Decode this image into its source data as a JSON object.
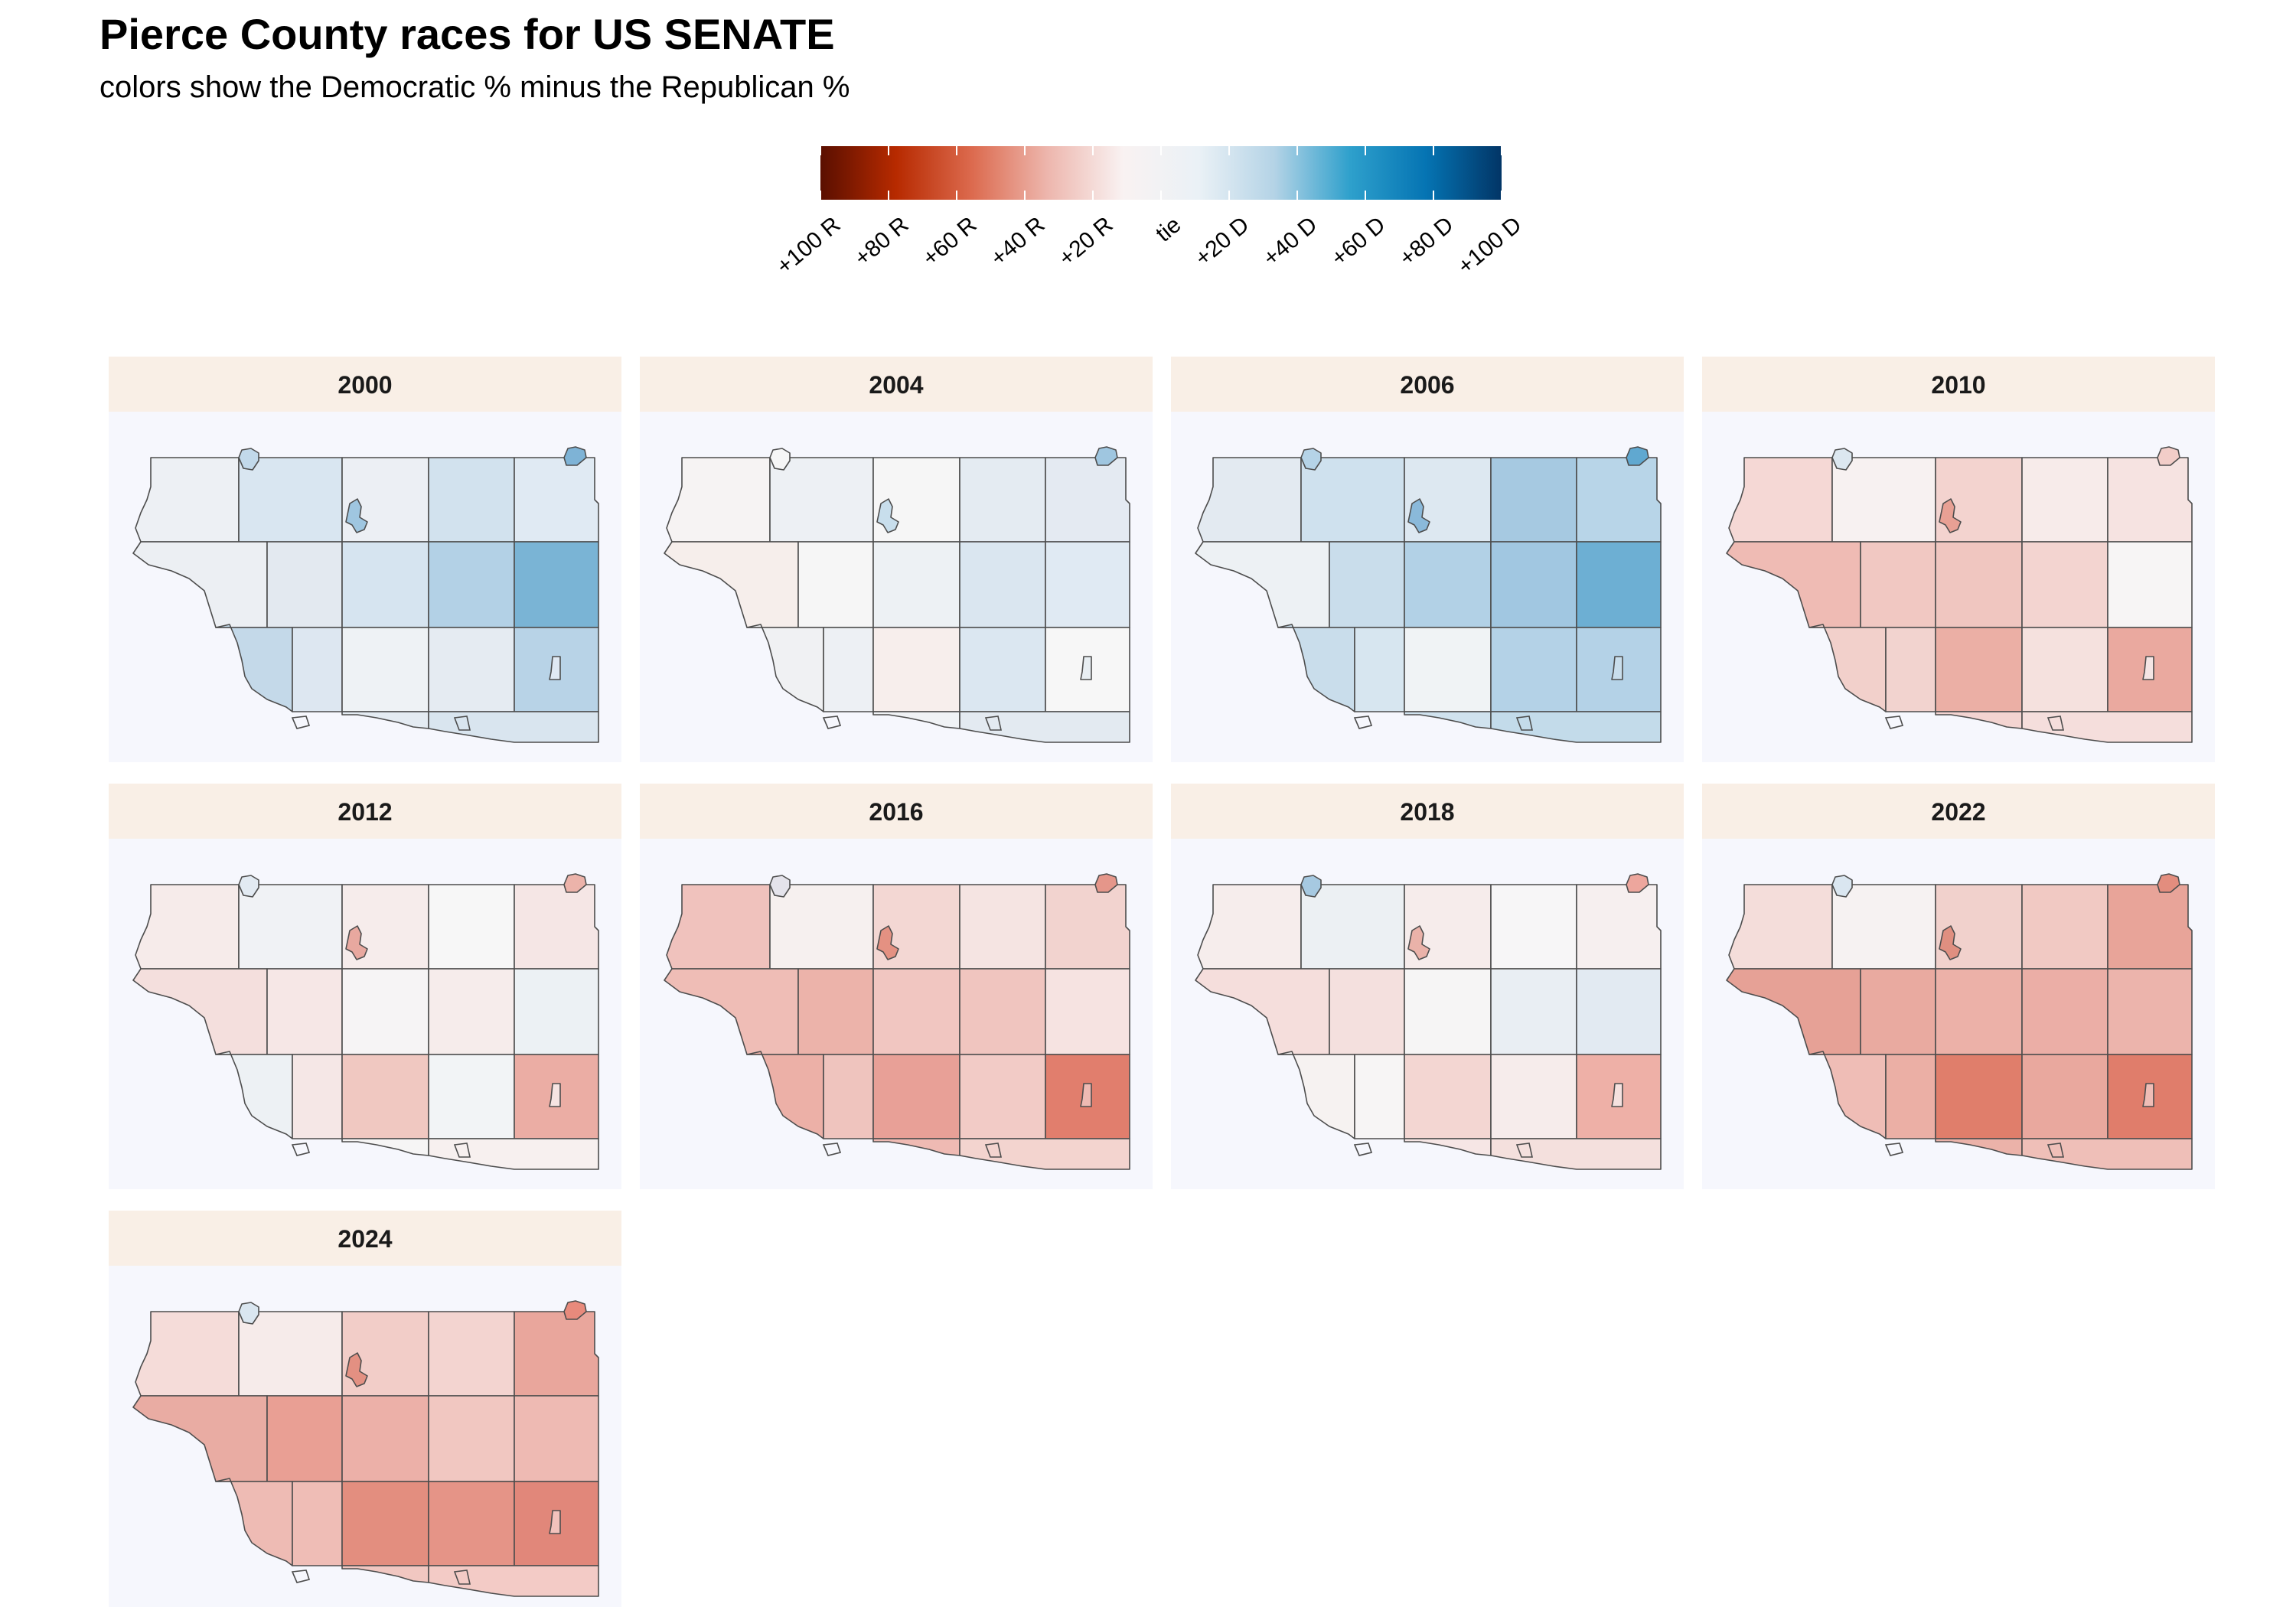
{
  "header": {
    "title": "Pierce County races for US SENATE",
    "subtitle": "colors show the Democratic % minus the Republican %"
  },
  "legend": {
    "colors": [
      "#67001f",
      "#b2182b",
      "#d6604d",
      "#f4a582",
      "#fddbc7",
      "#f7f7f7",
      "#d1e5f0",
      "#92c5de",
      "#4393c3",
      "#2166ac",
      "#053061"
    ],
    "stops": [
      "#5a0f00",
      "#b72a00",
      "#dc6a4e",
      "#edb6ad",
      "#f9f2f2",
      "#eaf1f6",
      "#b4d3e6",
      "#2ea0cc",
      "#0574b3",
      "#023566"
    ],
    "tick_labels": [
      "+100 R",
      "+80 R",
      "+60 R",
      "+40 R",
      "+20 R",
      "tie",
      "+20 D",
      "+40 D",
      "+60 D",
      "+80 D",
      "+100 D"
    ],
    "range": [
      -100,
      100
    ]
  },
  "map_style": {
    "strip_fill": "#f9efe6",
    "panel_fill": "#f6f7fd",
    "outline": "#4d4d4d"
  },
  "panels": [
    {
      "year": "2000",
      "colors": [
        "#edf0f4",
        "#d9e6f1",
        "#eceff4",
        "#d2e2ee",
        "#e0eaf3",
        "#eceff3",
        "#e3e9f0",
        "#d6e4f0",
        "#b3d1e6",
        "#7ab4d5",
        "#c4d9e9",
        "#dde7f1",
        "#eef2f5",
        "#e5ebf2",
        "#b8d3e7",
        "#e4ebf2",
        "#d9e5ef",
        "#9fc6e0",
        "#7eb3d6",
        "#c2d9ea",
        "#e0e9f3"
      ]
    },
    {
      "year": "2004",
      "colors": [
        "#f6f3f3",
        "#edf0f4",
        "#f6f6f6",
        "#e4ebf2",
        "#e4eaf2",
        "#f6eeeb",
        "#f6f6f6",
        "#edf1f4",
        "#dae6f0",
        "#e0eaf3",
        "#f0f1f3",
        "#edf0f4",
        "#f7eeec",
        "#dbe7f1",
        "#f7f7f7",
        "#f0f2f5",
        "#e3eaf1",
        "#c8deec",
        "#9fc6e0",
        "#f6f6f6",
        "#e8eef2"
      ]
    },
    {
      "year": "2006",
      "colors": [
        "#e3eaf1",
        "#cfe1ee",
        "#dde8f1",
        "#a6c9e1",
        "#b8d5e8",
        "#edf1f4",
        "#c9ddeb",
        "#b2d1e6",
        "#a1c7e1",
        "#6dafd3",
        "#c9ddeb",
        "#d7e6f0",
        "#f0f3f5",
        "#b4d2e7",
        "#b4d2e7",
        "#d0e2ee",
        "#c3dbea",
        "#8ab9da",
        "#60a8d0",
        "#b5d3e7",
        "#c9deec"
      ]
    },
    {
      "year": "2010",
      "colors": [
        "#f5d8d5",
        "#f7f1f1",
        "#f3d3cf",
        "#f7ebea",
        "#f6e3e1",
        "#efbbb4",
        "#f1c8c2",
        "#f0c6c0",
        "#f3d4d0",
        "#f7f5f5",
        "#f2d0cb",
        "#f2d3cf",
        "#ebafa5",
        "#f5e1de",
        "#eaa99f",
        "#f3d4d1",
        "#f5dedc",
        "#e8a094",
        "#f2cdc8",
        "#dce7f0",
        "#f4e5e4"
      ]
    },
    {
      "year": "2012",
      "colors": [
        "#f6ebea",
        "#f0f2f5",
        "#f6eceb",
        "#f7f7f7",
        "#f5e6e5",
        "#f4dfdd",
        "#f6e7e6",
        "#f6f4f5",
        "#f6eceb",
        "#ecf1f4",
        "#edf1f4",
        "#f5e7e6",
        "#f0c8c1",
        "#f2f4f6",
        "#ebada4",
        "#f6f5f5",
        "#f7f0ef",
        "#e8a89f",
        "#ecb3aa",
        "#e2eaf2",
        "#f6e4e2"
      ]
    },
    {
      "year": "2016",
      "colors": [
        "#f0c2bd",
        "#f6f0ef",
        "#f3d7d3",
        "#f5e4e2",
        "#f2d3cf",
        "#efbdb6",
        "#ecb3aa",
        "#f1c6c1",
        "#f0c5bf",
        "#f6e3e1",
        "#ecb0a7",
        "#efc4be",
        "#e8a097",
        "#f2cbc6",
        "#e17e6d",
        "#efbab3",
        "#f3d4cf",
        "#e49182",
        "#e5968a",
        "#e4e3eb",
        "#eebab3"
      ]
    },
    {
      "year": "2018",
      "colors": [
        "#f6edec",
        "#ecf0f3",
        "#f6eceb",
        "#f7f6f7",
        "#f6efef",
        "#f5dedc",
        "#f4e0de",
        "#f6f5f5",
        "#e9eef3",
        "#e2eaf2",
        "#f6f2f1",
        "#f7f5f5",
        "#f3d6d2",
        "#f6eceb",
        "#eeb0a7",
        "#f6e6e5",
        "#f4e0dd",
        "#eab2a9",
        "#eda69d",
        "#a6c9e1",
        "#f5e1df"
      ]
    },
    {
      "year": "2022",
      "colors": [
        "#f4ddda",
        "#f6f2f2",
        "#f1d1cc",
        "#f1c9c3",
        "#e8a499",
        "#e6a196",
        "#e9aaa0",
        "#ecb1a8",
        "#ebaea6",
        "#ecb4ac",
        "#efbdb6",
        "#ebafa5",
        "#e07e6b",
        "#e9a89e",
        "#e07d6b",
        "#ebb2a9",
        "#efbfb8",
        "#e08f80",
        "#e38d7e",
        "#dae6f0",
        "#efbdb6"
      ]
    },
    {
      "year": "2024",
      "colors": [
        "#f5dcd9",
        "#f6ebea",
        "#f2cdc8",
        "#f3d4d0",
        "#e9a69c",
        "#e9aca3",
        "#e99f94",
        "#ecb0a8",
        "#f1c7c1",
        "#eebab3",
        "#eebbb4",
        "#efbdb6",
        "#e38e7f",
        "#e59487",
        "#e1877a",
        "#f1c7c1",
        "#f3cbc6",
        "#e39082",
        "#e88a7c",
        "#dae6f0",
        "#f2c2bc"
      ]
    }
  ]
}
